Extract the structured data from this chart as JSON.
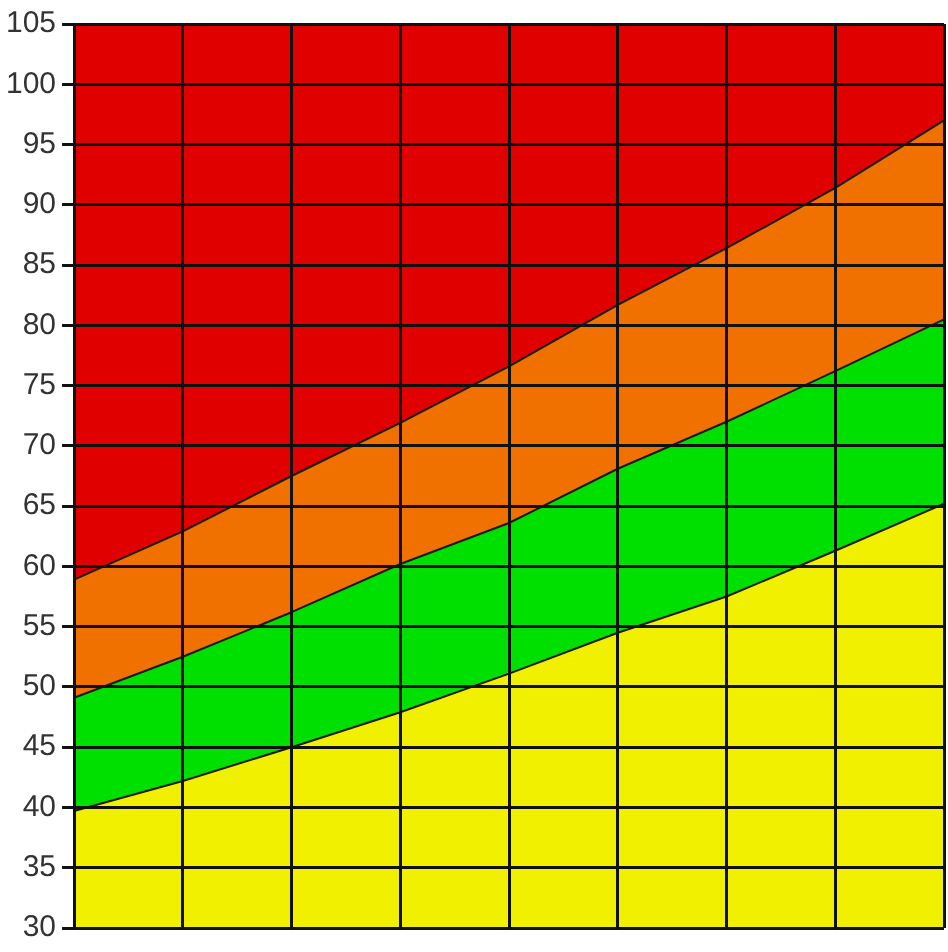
{
  "chart_data": {
    "type": "area",
    "categories": [
      null,
      null,
      null,
      null,
      null,
      null,
      null,
      null,
      null
    ],
    "series": [
      {
        "color": "#f0f000",
        "values": [
          39.7,
          42.2,
          45,
          47.9,
          51.1,
          54.5,
          57.5,
          61.3,
          65.2
        ]
      },
      {
        "color": "#00e000",
        "values": [
          49.1,
          52.5,
          56.2,
          60.2,
          63.6,
          68.1,
          72,
          76.2,
          80.5
        ]
      },
      {
        "color": "#f07000",
        "values": [
          58.9,
          62.9,
          67.5,
          71.9,
          76.6,
          81.7,
          86.4,
          91.4,
          97
        ]
      },
      {
        "color": "#e00000",
        "values": [
          105,
          105,
          105,
          105,
          105,
          105,
          105,
          105,
          105
        ]
      }
    ],
    "ylim": [
      30,
      105
    ],
    "yticks": [
      30,
      35,
      40,
      45,
      50,
      55,
      60,
      65,
      70,
      75,
      80,
      85,
      90,
      95,
      100,
      105
    ],
    "grid": true,
    "legend": false,
    "tick_labels": "y"
  }
}
